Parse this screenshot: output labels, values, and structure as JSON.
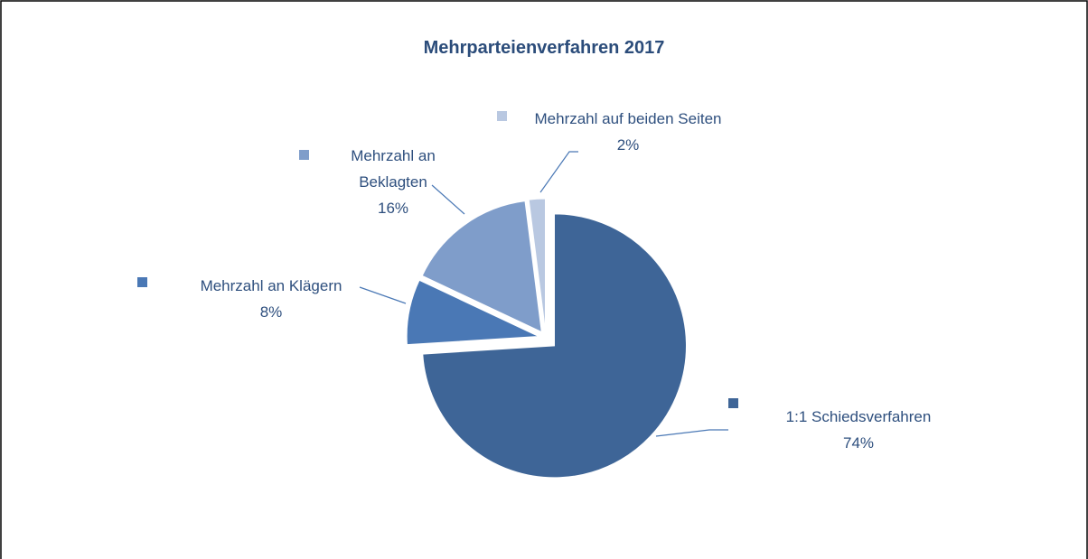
{
  "chart_data": {
    "type": "pie",
    "title": "Mehrparteienverfahren 2017",
    "categories": [
      "1:1 Schiedsverfahren",
      "Mehrzahl an Klägern",
      "Mehrzahl an Beklagten",
      "Mehrzahl auf beiden Seiten"
    ],
    "values": [
      74,
      8,
      16,
      2
    ],
    "value_labels": [
      "74%",
      "8%",
      "16%",
      "2%"
    ],
    "colors": [
      "#3e6597",
      "#4a78b5",
      "#7f9dca",
      "#b9c8e1"
    ]
  }
}
